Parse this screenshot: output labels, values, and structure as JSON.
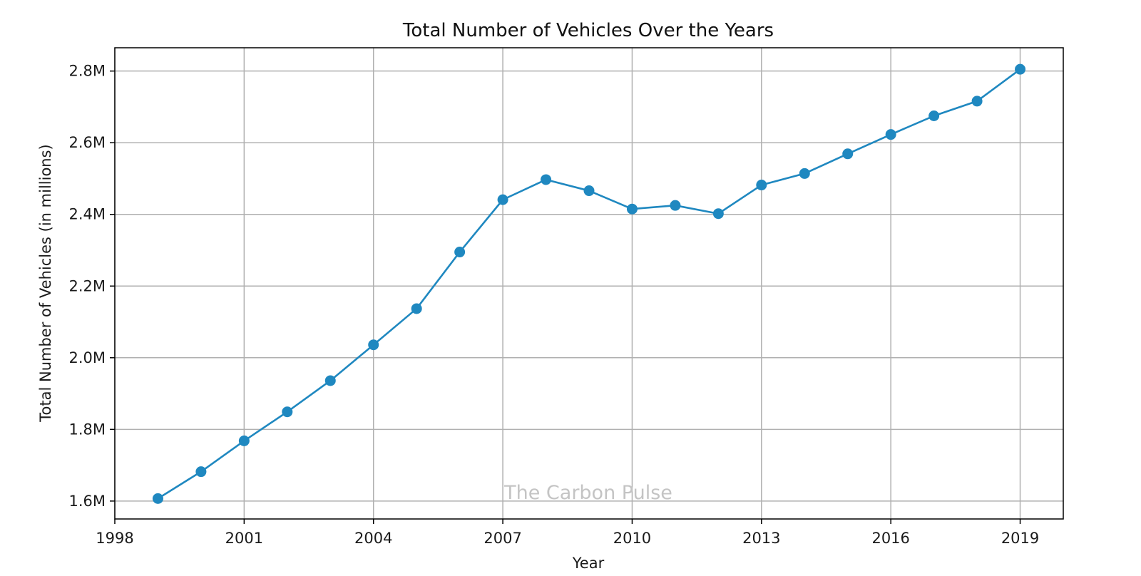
{
  "chart_data": {
    "type": "line",
    "title": "Total Number of Vehicles Over the Years",
    "xlabel": "Year",
    "ylabel": "Total Number of Vehicles (in millions)",
    "xlim": [
      1998,
      2020
    ],
    "ylim": [
      1.55,
      2.865
    ],
    "xticks": [
      1998,
      2001,
      2004,
      2007,
      2010,
      2013,
      2016,
      2019
    ],
    "yticks": [
      1.6,
      1.8,
      2.0,
      2.2,
      2.4,
      2.6,
      2.8
    ],
    "ytick_labels": [
      "1.6M",
      "1.8M",
      "2.0M",
      "2.2M",
      "2.4M",
      "2.6M",
      "2.8M"
    ],
    "grid": true,
    "series": [
      {
        "color": "#1f88c0",
        "marker": "circle",
        "x": [
          1999,
          2000,
          2001,
          2002,
          2003,
          2004,
          2005,
          2006,
          2007,
          2008,
          2009,
          2010,
          2011,
          2012,
          2013,
          2014,
          2015,
          2016,
          2017,
          2018,
          2019
        ],
        "y": [
          1.607,
          1.682,
          1.768,
          1.849,
          1.936,
          2.036,
          2.137,
          2.295,
          2.441,
          2.497,
          2.466,
          2.415,
          2.425,
          2.402,
          2.482,
          2.514,
          2.569,
          2.623,
          2.675,
          2.716,
          2.805
        ]
      }
    ],
    "watermark": "The Carbon Pulse"
  }
}
